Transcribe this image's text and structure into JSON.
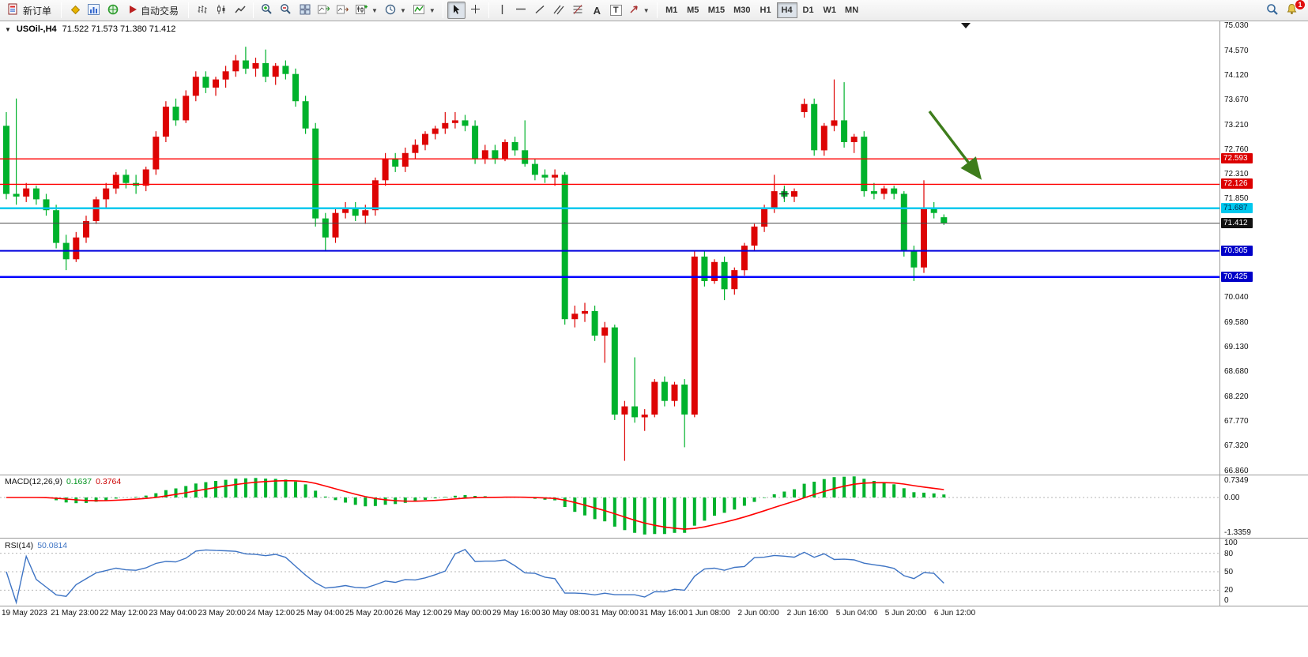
{
  "toolbar": {
    "new_order": "新订单",
    "autotrading": "自动交易",
    "timeframes": [
      "M1",
      "M5",
      "M15",
      "M30",
      "H1",
      "H4",
      "D1",
      "W1",
      "MN"
    ],
    "active_timeframe": "H4",
    "notification_badge": "1"
  },
  "chart": {
    "title": "USOil-,H4",
    "ohlc": "71.522 71.573 71.380 71.412",
    "price_axis_ticks": [
      "75.030",
      "74.570",
      "74.120",
      "73.670",
      "73.210",
      "72.760",
      "72.310",
      "71.850",
      "70.040",
      "69.580",
      "69.130",
      "68.680",
      "68.220",
      "67.770",
      "67.320",
      "66.860"
    ],
    "levels": [
      {
        "price": 72.593,
        "label": "72.593",
        "line": "#ff0000",
        "w": 1.4,
        "bg": "#dc0000",
        "fg": "#ffffff"
      },
      {
        "price": 72.126,
        "label": "72.126",
        "line": "#ff0000",
        "w": 1.4,
        "bg": "#dc0000",
        "fg": "#ffffff"
      },
      {
        "price": 71.687,
        "label": "71.687",
        "line": "#00c8ee",
        "w": 2.5,
        "bg": "#00c8ee",
        "fg": "#002a52"
      },
      {
        "price": 71.412,
        "label": "71.412",
        "line": "#4a4a4a",
        "w": 1,
        "bg": "#111111",
        "fg": "#ffffff"
      },
      {
        "price": 70.905,
        "label": "70.905",
        "line": "#0000dd",
        "w": 2,
        "bg": "#0000c8",
        "fg": "#ffffff"
      },
      {
        "price": 70.425,
        "label": "70.425",
        "line": "#0000ff",
        "w": 2.5,
        "bg": "#0000c8",
        "fg": "#ffffff"
      }
    ],
    "time_axis": [
      "19 May 2023",
      "21 May 23:00",
      "22 May 12:00",
      "23 May 04:00",
      "23 May 20:00",
      "24 May 12:00",
      "25 May 04:00",
      "25 May 20:00",
      "26 May 12:00",
      "29 May 00:00",
      "29 May 16:00",
      "30 May 08:00",
      "31 May 00:00",
      "31 May 16:00",
      "1 Jun 08:00",
      "2 Jun 00:00",
      "2 Jun 16:00",
      "5 Jun 04:00",
      "5 Jun 20:00",
      "6 Jun 12:00"
    ]
  },
  "chart_data": {
    "type": "candlestick",
    "symbol": "USOil-",
    "timeframe": "H4",
    "bull_color": "#dd0404",
    "bear_color": "#00b22c",
    "price_axis_range": [
      66.86,
      75.03
    ],
    "candles": [
      [
        73.2,
        73.45,
        71.85,
        71.95
      ],
      [
        71.95,
        73.7,
        71.75,
        71.9
      ],
      [
        71.9,
        72.15,
        71.8,
        72.05
      ],
      [
        72.05,
        72.1,
        71.75,
        71.85
      ],
      [
        71.85,
        71.95,
        71.55,
        71.65
      ],
      [
        71.65,
        71.75,
        70.95,
        71.05
      ],
      [
        71.05,
        71.2,
        70.55,
        70.75
      ],
      [
        70.75,
        71.25,
        70.7,
        71.15
      ],
      [
        71.15,
        71.55,
        71.05,
        71.45
      ],
      [
        71.45,
        71.9,
        71.4,
        71.85
      ],
      [
        71.85,
        72.15,
        71.7,
        72.05
      ],
      [
        72.05,
        72.35,
        71.95,
        72.3
      ],
      [
        72.3,
        72.4,
        72.05,
        72.15
      ],
      [
        72.15,
        72.3,
        71.95,
        72.1
      ],
      [
        72.1,
        72.45,
        72.0,
        72.4
      ],
      [
        72.4,
        73.1,
        72.3,
        73.0
      ],
      [
        73.0,
        73.65,
        72.9,
        73.55
      ],
      [
        73.55,
        73.7,
        73.2,
        73.3
      ],
      [
        73.3,
        73.85,
        73.25,
        73.75
      ],
      [
        73.75,
        74.2,
        73.65,
        74.1
      ],
      [
        74.1,
        74.2,
        73.8,
        73.9
      ],
      [
        73.9,
        74.1,
        73.75,
        74.05
      ],
      [
        74.05,
        74.3,
        73.9,
        74.2
      ],
      [
        74.2,
        74.5,
        74.1,
        74.4
      ],
      [
        74.4,
        74.65,
        74.15,
        74.25
      ],
      [
        74.25,
        74.45,
        74.1,
        74.35
      ],
      [
        74.35,
        74.6,
        74.0,
        74.1
      ],
      [
        74.1,
        74.35,
        73.95,
        74.3
      ],
      [
        74.3,
        74.4,
        74.05,
        74.15
      ],
      [
        74.15,
        74.25,
        73.55,
        73.65
      ],
      [
        73.65,
        73.75,
        73.05,
        73.15
      ],
      [
        73.15,
        73.25,
        71.35,
        71.5
      ],
      [
        71.5,
        71.6,
        70.9,
        71.15
      ],
      [
        71.15,
        71.7,
        71.05,
        71.6
      ],
      [
        71.6,
        71.8,
        71.5,
        71.7
      ],
      [
        71.7,
        71.8,
        71.45,
        71.55
      ],
      [
        71.55,
        71.75,
        71.4,
        71.65
      ],
      [
        71.65,
        72.25,
        71.55,
        72.2
      ],
      [
        72.2,
        72.7,
        72.1,
        72.6
      ],
      [
        72.6,
        72.7,
        72.35,
        72.45
      ],
      [
        72.45,
        72.8,
        72.35,
        72.7
      ],
      [
        72.7,
        72.95,
        72.6,
        72.85
      ],
      [
        72.85,
        73.1,
        72.75,
        73.05
      ],
      [
        73.05,
        73.2,
        72.95,
        73.15
      ],
      [
        73.15,
        73.45,
        73.05,
        73.25
      ],
      [
        73.25,
        73.45,
        73.15,
        73.3
      ],
      [
        73.3,
        73.4,
        73.1,
        73.2
      ],
      [
        73.2,
        73.3,
        72.5,
        72.6
      ],
      [
        72.6,
        72.85,
        72.5,
        72.75
      ],
      [
        72.75,
        72.85,
        72.5,
        72.6
      ],
      [
        72.6,
        72.95,
        72.55,
        72.9
      ],
      [
        72.9,
        73.0,
        72.65,
        72.75
      ],
      [
        72.75,
        73.3,
        72.45,
        72.5
      ],
      [
        72.5,
        72.6,
        72.2,
        72.3
      ],
      [
        72.3,
        72.4,
        72.15,
        72.25
      ],
      [
        72.25,
        72.4,
        72.1,
        72.3
      ],
      [
        72.3,
        72.35,
        69.55,
        69.65
      ],
      [
        69.65,
        69.9,
        69.5,
        69.75
      ],
      [
        69.75,
        69.95,
        69.6,
        69.8
      ],
      [
        69.8,
        69.9,
        69.25,
        69.35
      ],
      [
        69.35,
        69.6,
        68.85,
        69.5
      ],
      [
        69.5,
        69.55,
        67.8,
        67.9
      ],
      [
        67.9,
        68.15,
        67.05,
        68.05
      ],
      [
        68.05,
        68.95,
        67.75,
        67.85
      ],
      [
        67.85,
        68.0,
        67.6,
        67.9
      ],
      [
        67.9,
        68.55,
        67.85,
        68.5
      ],
      [
        68.5,
        68.6,
        68.05,
        68.15
      ],
      [
        68.15,
        68.5,
        68.05,
        68.45
      ],
      [
        68.45,
        68.55,
        67.3,
        67.9
      ],
      [
        67.9,
        70.9,
        67.85,
        70.8
      ],
      [
        70.8,
        70.9,
        70.25,
        70.35
      ],
      [
        70.35,
        70.75,
        70.3,
        70.7
      ],
      [
        70.7,
        70.8,
        70.0,
        70.2
      ],
      [
        70.2,
        70.6,
        70.1,
        70.55
      ],
      [
        70.55,
        71.05,
        70.45,
        71.0
      ],
      [
        71.0,
        71.4,
        70.9,
        71.35
      ],
      [
        71.35,
        71.75,
        71.25,
        71.7
      ],
      [
        71.7,
        72.3,
        71.6,
        72.0
      ],
      [
        72.0,
        72.1,
        71.8,
        71.9
      ],
      [
        71.9,
        72.05,
        71.8,
        72.0
      ],
      [
        73.45,
        73.7,
        73.35,
        73.6
      ],
      [
        73.6,
        73.7,
        72.65,
        72.75
      ],
      [
        72.75,
        73.25,
        72.65,
        73.2
      ],
      [
        73.2,
        74.05,
        73.1,
        73.3
      ],
      [
        73.3,
        74.0,
        72.8,
        72.9
      ],
      [
        72.9,
        73.05,
        72.7,
        73.0
      ],
      [
        73.0,
        73.1,
        71.9,
        72.0
      ],
      [
        72.0,
        72.15,
        71.85,
        71.95
      ],
      [
        71.95,
        72.1,
        71.85,
        72.05
      ],
      [
        72.05,
        72.1,
        71.85,
        71.95
      ],
      [
        71.95,
        72.0,
        70.8,
        70.9
      ],
      [
        70.9,
        71.0,
        70.35,
        70.6
      ],
      [
        70.6,
        72.2,
        70.5,
        71.7
      ],
      [
        71.7,
        71.8,
        71.5,
        71.6
      ],
      [
        71.522,
        71.573,
        71.38,
        71.412
      ]
    ]
  },
  "macd": {
    "label": "MACD(12,26,9)",
    "value_main": "0.1637",
    "value_signal": "0.3764",
    "axis_max": "0.7349",
    "axis_zero": "0.00",
    "axis_min": "-1.3359",
    "histogram_color": "#00b22c",
    "signal_color": "#ff0000"
  },
  "rsi": {
    "label": "RSI(14)",
    "value": "50.0814",
    "axis": [
      "100",
      "80",
      "50",
      "20",
      "0"
    ],
    "levels": [
      80,
      50,
      20
    ],
    "line_color": "#3E74C4"
  },
  "annotation": {
    "arrow_color": "#3e7d1c"
  }
}
